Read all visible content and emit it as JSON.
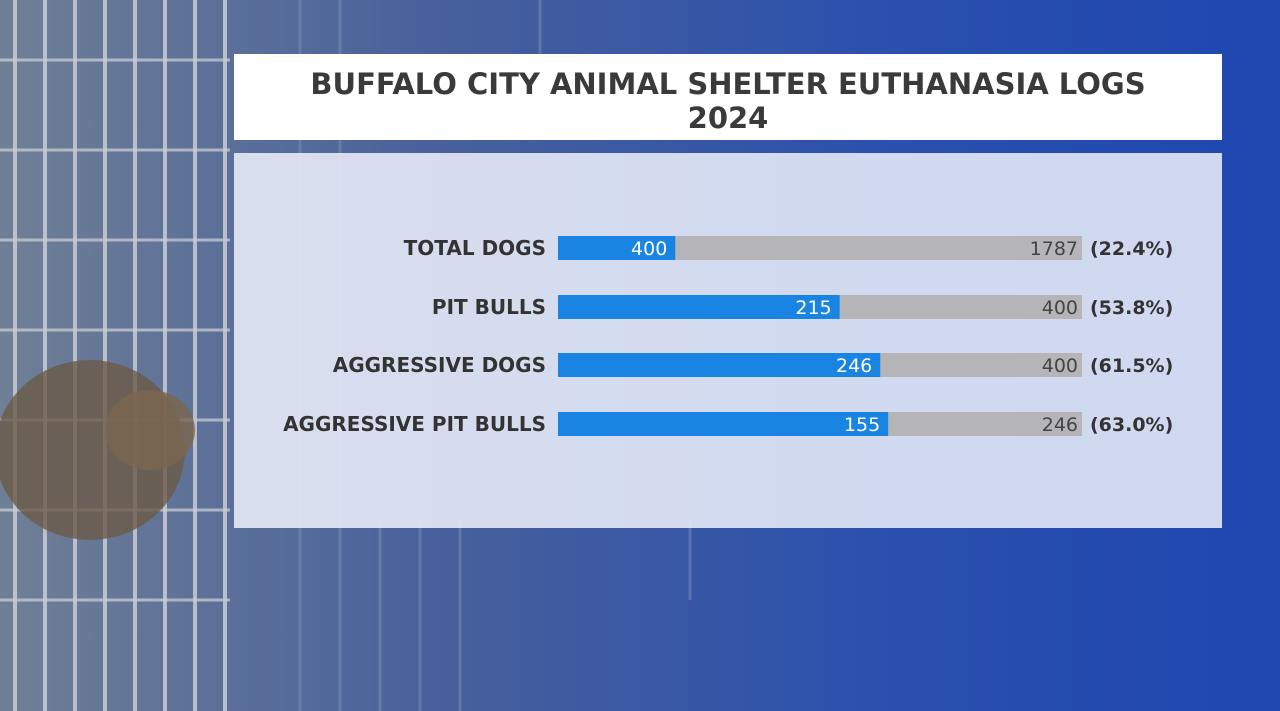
{
  "colors": {
    "accent_bar": "#1a84e2",
    "track_bar": "#b5b5b7",
    "background_blue": "#1f47b0",
    "title_bg": "#ffffff"
  },
  "chart_data": {
    "type": "bar",
    "orientation": "horizontal",
    "title": "BUFFALO CITY ANIMAL SHELTER EUTHANASIA LOGS",
    "subtitle": "2024",
    "categories": [
      "TOTAL DOGS",
      "PIT BULLS",
      "AGGRESSIVE DOGS",
      "AGGRESSIVE PIT BULLS"
    ],
    "values": [
      400,
      215,
      246,
      155
    ],
    "totals": [
      1787,
      400,
      400,
      246
    ],
    "percent_labels": [
      "(22.4%)",
      "(53.8%)",
      "(61.5%)",
      "(63.0%)"
    ],
    "grid": false,
    "legend": "none"
  }
}
